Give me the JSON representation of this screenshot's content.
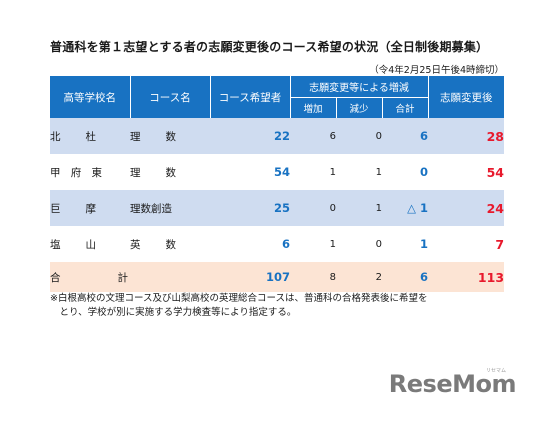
{
  "title": "普通科を第１志望とする者の志願変更後のコース希望の状況（全日制後期募集）",
  "as_of": "（令4年2月25日午後4時締切）",
  "headers": {
    "school": "高等学校名",
    "course": "コース名",
    "course_wish": "コース希望者",
    "change_group": "志願変更等による増減",
    "increase": "増加",
    "decrease": "減少",
    "subtotal": "合計",
    "after_change": "志願変更後"
  },
  "rows": [
    {
      "school": [
        "北",
        "杜"
      ],
      "course": [
        "理",
        "数"
      ],
      "wish": "22",
      "inc": "6",
      "dec": "0",
      "sum": "6",
      "after": "28"
    },
    {
      "school": [
        "甲",
        "府",
        "東"
      ],
      "course": [
        "理",
        "数"
      ],
      "wish": "54",
      "inc": "1",
      "dec": "1",
      "sum": "0",
      "after": "54"
    },
    {
      "school": [
        "巨",
        "摩"
      ],
      "course": [
        "理数創造"
      ],
      "wish": "25",
      "inc": "0",
      "dec": "1",
      "sum": "△ 1",
      "after": "24"
    },
    {
      "school": [
        "塩",
        "山"
      ],
      "course": [
        "英",
        "数"
      ],
      "wish": "6",
      "inc": "1",
      "dec": "0",
      "sum": "1",
      "after": "7"
    }
  ],
  "total": {
    "label": [
      "合",
      "計"
    ],
    "wish": "107",
    "inc": "8",
    "dec": "2",
    "sum": "6",
    "after": "113"
  },
  "note_lines": [
    "※白根高校の文理コース及び山梨高校の英理総合コースは、普通科の合格発表後に希望を",
    "　とり、学校が別に実施する学力検査等により指定する。"
  ],
  "logo": "ReseMom",
  "logo_sub": "リセマム"
}
